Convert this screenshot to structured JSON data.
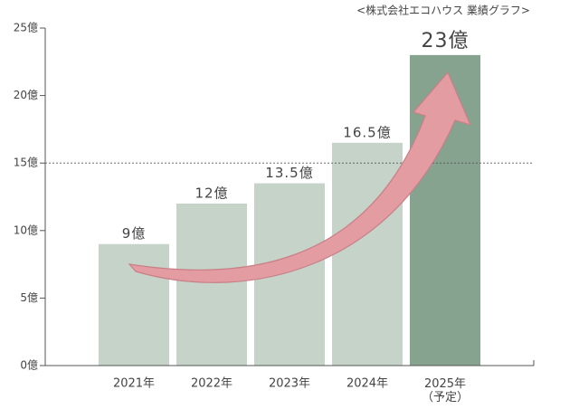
{
  "chart_data": {
    "type": "bar",
    "title": "<株式会社エコハウス 業績グラフ>",
    "categories": [
      "2021年",
      "2022年",
      "2023年",
      "2024年",
      "2025年\n（予定）"
    ],
    "values": [
      9,
      12,
      13.5,
      16.5,
      23
    ],
    "value_labels": [
      "9億",
      "12億",
      "13.5億",
      "16.5億",
      "23億"
    ],
    "colors": [
      "#c5d3c9",
      "#c5d3c9",
      "#c5d3c9",
      "#c5d3c9",
      "#86a38f"
    ],
    "ylim": [
      0,
      25
    ],
    "yticks": [
      {
        "value": 0,
        "label": "0億"
      },
      {
        "value": 5,
        "label": "5億"
      },
      {
        "value": 10,
        "label": "10億"
      },
      {
        "value": 15,
        "label": "15億"
      },
      {
        "value": 20,
        "label": "20億"
      },
      {
        "value": 25,
        "label": "25億"
      }
    ],
    "reference_line": 15
  }
}
